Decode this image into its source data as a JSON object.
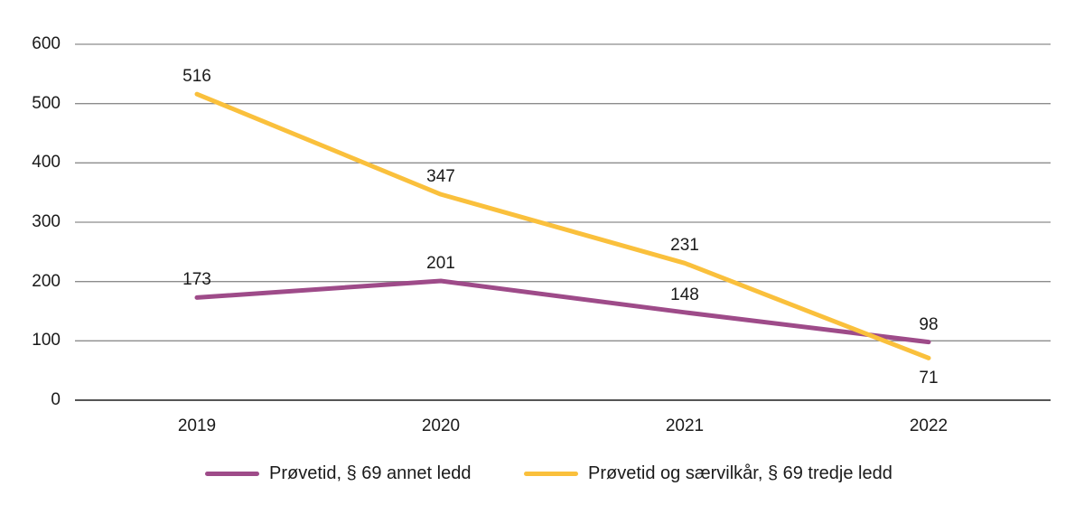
{
  "chart_data": {
    "type": "line",
    "categories": [
      "2019",
      "2020",
      "2021",
      "2022"
    ],
    "series": [
      {
        "name": "Prøvetid, § 69 annet ledd",
        "values": [
          173,
          201,
          148,
          98
        ],
        "color": "#9e4b89",
        "label_positions": [
          "above",
          "above",
          "above",
          "above"
        ]
      },
      {
        "name": "Prøvetid og særvilkår, § 69 tredje ledd",
        "values": [
          516,
          347,
          231,
          71
        ],
        "color": "#fac03c",
        "label_positions": [
          "above",
          "above",
          "above",
          "below"
        ]
      }
    ],
    "title": "",
    "xlabel": "",
    "ylabel": "",
    "ylim": [
      0,
      600
    ],
    "ytick_step": 100,
    "grid": true,
    "legend_position": "bottom",
    "colors": {
      "gridline": "#8c8c8c",
      "axis_line": "#3d3d3d",
      "text": "#1a1a1a",
      "background": "#ffffff"
    }
  }
}
